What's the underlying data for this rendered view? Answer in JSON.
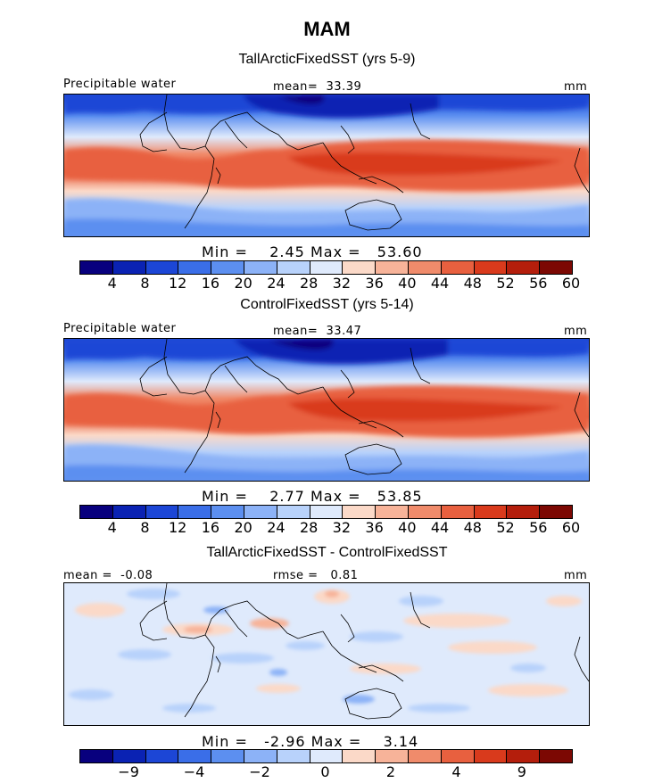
{
  "figure": {
    "title": "MAM"
  },
  "panel1": {
    "subtitle": "TallArcticFixedSST (yrs 5-9)",
    "variable": "Precipitable water",
    "stat_label": "mean=",
    "stat_value": "33.39",
    "units": "mm",
    "min_label": "Min =",
    "min_value": "2.45",
    "max_label": "Max =",
    "max_value": "53.60"
  },
  "panel2": {
    "subtitle": "ControlFixedSST (yrs 5-14)",
    "variable": "Precipitable water",
    "stat_label": "mean=",
    "stat_value": "33.47",
    "units": "mm",
    "min_label": "Min =",
    "min_value": "2.77",
    "max_label": "Max =",
    "max_value": "53.85"
  },
  "panel3": {
    "subtitle": "TallArcticFixedSST - ControlFixedSST",
    "mean_label": "mean =",
    "mean_value": "-0.08",
    "rmse_label": "rmse =",
    "rmse_value": "0.81",
    "units": "mm",
    "min_label": "Min =",
    "min_value": "-2.96",
    "max_label": "Max =",
    "max_value": "3.14"
  },
  "colorbar_abs": {
    "ticks": [
      "4",
      "8",
      "12",
      "16",
      "20",
      "24",
      "28",
      "32",
      "36",
      "40",
      "44",
      "48",
      "52",
      "56",
      "60"
    ],
    "colors": [
      "#08007e",
      "#0a22b3",
      "#1c46d6",
      "#3a6ee8",
      "#5c8ff0",
      "#8cb2f7",
      "#b8d2fb",
      "#dfeafc",
      "#fbd9c8",
      "#f7b399",
      "#f08b6b",
      "#e8603f",
      "#d93a1c",
      "#b41e0c",
      "#7c0803"
    ]
  },
  "colorbar_diff": {
    "ticks": [
      "-9",
      "-4",
      "-2",
      "0",
      "2",
      "4",
      "9"
    ],
    "colors": [
      "#08007e",
      "#0a22b3",
      "#1c46d6",
      "#3a6ee8",
      "#5c8ff0",
      "#8cb2f7",
      "#b8d2fb",
      "#dfeafc",
      "#fbd9c8",
      "#f7b399",
      "#f08b6b",
      "#e8603f",
      "#d93a1c",
      "#b41e0c",
      "#7c0803"
    ]
  }
}
